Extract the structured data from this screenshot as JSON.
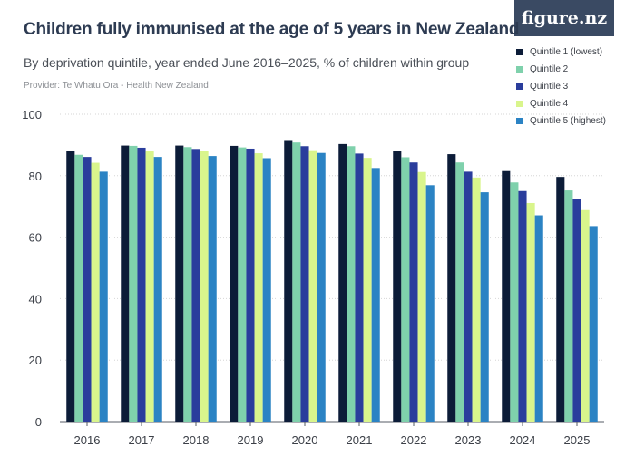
{
  "header": {
    "title": "Children fully immunised at the age of 5 years in New Zealand",
    "subtitle": "By deprivation quintile, year ended June 2016–2025, % of children within group",
    "provider": "Provider: Te Whatu Ora - Health New Zealand",
    "brand": "figure.nz"
  },
  "chart_data": {
    "type": "bar",
    "categories": [
      "2016",
      "2017",
      "2018",
      "2019",
      "2020",
      "2021",
      "2022",
      "2023",
      "2024",
      "2025"
    ],
    "series": [
      {
        "name": "Quintile 1 (lowest)",
        "color": "#0c1c38",
        "values": [
          88.0,
          89.8,
          89.8,
          89.7,
          91.6,
          90.3,
          88.1,
          87.0,
          81.5,
          79.6
        ]
      },
      {
        "name": "Quintile 2",
        "color": "#7fd1ac",
        "values": [
          86.8,
          89.7,
          89.3,
          89.2,
          90.8,
          89.6,
          86.0,
          84.3,
          77.8,
          75.2
        ]
      },
      {
        "name": "Quintile 3",
        "color": "#2a3d9c",
        "values": [
          86.1,
          89.1,
          88.7,
          88.8,
          89.6,
          87.2,
          84.3,
          81.3,
          75.0,
          72.4
        ]
      },
      {
        "name": "Quintile 4",
        "color": "#d9f58c",
        "values": [
          84.2,
          87.9,
          88.0,
          87.3,
          88.3,
          85.8,
          81.2,
          79.4,
          71.1,
          68.8
        ]
      },
      {
        "name": "Quintile 5 (highest)",
        "color": "#2b83c4",
        "values": [
          81.3,
          86.1,
          86.4,
          85.7,
          87.4,
          82.5,
          76.9,
          74.6,
          67.1,
          63.6
        ]
      }
    ],
    "ylim": [
      0,
      100
    ],
    "yticks": [
      "0",
      "20",
      "40",
      "60",
      "80",
      "100"
    ],
    "grid": true,
    "legend": "top-right"
  }
}
